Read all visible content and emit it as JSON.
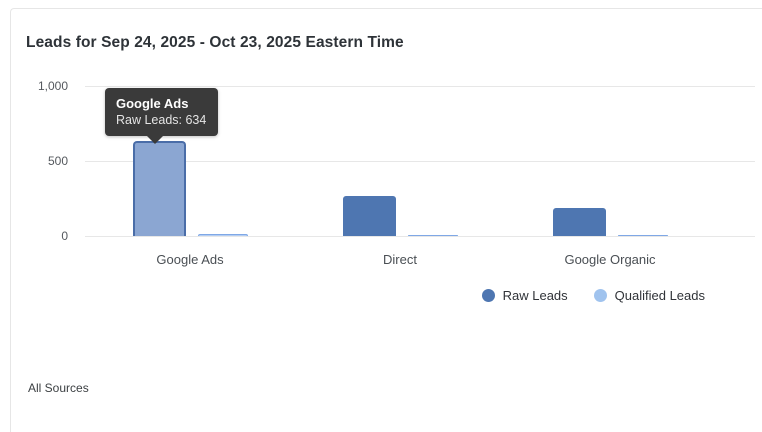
{
  "card": {
    "title": "Leads for Sep 24, 2025 - Oct 23, 2025 Eastern Time",
    "footer": "All Sources"
  },
  "tooltip": {
    "title": "Google Ads",
    "value_line": "Raw Leads: 634"
  },
  "legend": [
    {
      "label": "Raw Leads",
      "color": "#4e76b1"
    },
    {
      "label": "Qualified Leads",
      "color": "#a0c3ee"
    }
  ],
  "chart_data": {
    "type": "bar",
    "title": "Leads for Sep 24, 2025 - Oct 23, 2025 Eastern Time",
    "categories": [
      "Google Ads",
      "Direct",
      "Google Organic"
    ],
    "series": [
      {
        "name": "Raw Leads",
        "color": "#4e76b1",
        "values": [
          634,
          270,
          190
        ]
      },
      {
        "name": "Qualified Leads",
        "color": "#b3cdf3",
        "values": [
          15,
          10,
          10
        ]
      }
    ],
    "xlabel": "",
    "ylabel": "",
    "ylim": [
      0,
      1000
    ],
    "yticks": [
      0,
      500,
      1000
    ],
    "ytick_labels": [
      "0",
      "500",
      "1,000"
    ],
    "grid": true,
    "legend_position": "bottom-right",
    "hovered": {
      "category": "Google Ads",
      "series": "Raw Leads",
      "value": 634
    }
  }
}
